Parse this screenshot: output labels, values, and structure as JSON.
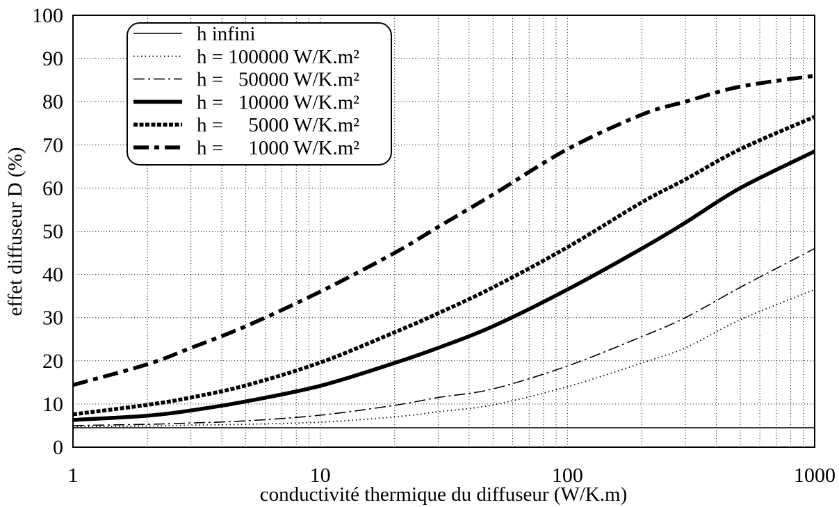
{
  "chart_data": {
    "type": "line",
    "xlabel": "conductivité thermique du diffuseur (W/K.m)",
    "ylabel": "effet diffuseur D (%)",
    "xscale": "log",
    "xlim": [
      1,
      1000
    ],
    "ylim": [
      0,
      100
    ],
    "xtick_labels": [
      "1",
      "10",
      "100",
      "1000"
    ],
    "ytick_labels": [
      "0",
      "10",
      "20",
      "30",
      "40",
      "50",
      "60",
      "70",
      "80",
      "90",
      "100"
    ],
    "grid": true,
    "legend_position": "top-left",
    "x": [
      1,
      2,
      3,
      5,
      10,
      20,
      30,
      50,
      100,
      200,
      300,
      500,
      1000
    ],
    "series": [
      {
        "name": "h infini",
        "color": "#000000",
        "values": [
          4.5,
          4.5,
          4.5,
          4.5,
          4.5,
          4.5,
          4.5,
          4.5,
          4.5,
          4.5,
          4.5,
          4.5,
          4.5
        ]
      },
      {
        "name": "h = 100000 W/K.m²",
        "color": "#000000",
        "values": [
          4.8,
          4.9,
          5.1,
          5.3,
          5.8,
          7.0,
          8.2,
          9.8,
          14.0,
          19.5,
          23.0,
          29.5,
          36.5
        ]
      },
      {
        "name": "h =   50000 W/K.m²",
        "color": "#000000",
        "values": [
          5.0,
          5.3,
          5.6,
          6.1,
          7.4,
          9.7,
          11.5,
          13.5,
          18.8,
          25.6,
          30.0,
          37.0,
          46.0
        ]
      },
      {
        "name": "h =   10000 W/K.m²",
        "color": "#000000",
        "values": [
          6.3,
          7.3,
          8.5,
          10.6,
          14.2,
          19.5,
          23.0,
          28.0,
          36.5,
          46.0,
          52.0,
          60.0,
          68.5
        ]
      },
      {
        "name": "h =     5000 W/K.m²",
        "color": "#000000",
        "values": [
          7.6,
          9.8,
          11.5,
          14.3,
          19.6,
          26.6,
          31.0,
          37.0,
          46.3,
          56.7,
          62.0,
          69.0,
          76.5
        ]
      },
      {
        "name": "h =     1000 W/K.m²",
        "color": "#000000",
        "values": [
          14.4,
          19.2,
          23.0,
          28.0,
          36.0,
          45.0,
          51.0,
          58.5,
          69.0,
          77.0,
          80.0,
          83.5,
          86.0
        ]
      }
    ]
  }
}
